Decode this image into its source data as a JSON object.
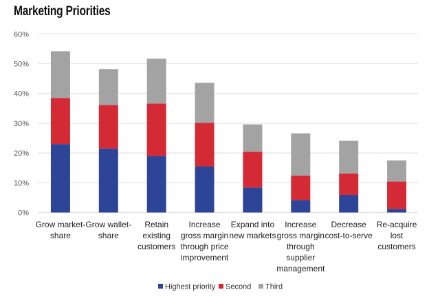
{
  "chart_data": {
    "type": "bar",
    "stacked": true,
    "title": "Marketing Priorities",
    "xlabel": "",
    "ylabel": "",
    "ylim": [
      0,
      60
    ],
    "yticks": [
      "0%",
      "10%",
      "20%",
      "30%",
      "40%",
      "50%",
      "60%"
    ],
    "grid": true,
    "legend_position": "bottom",
    "categories": [
      [
        "Grow market-",
        "share"
      ],
      [
        "Grow wallet-",
        "share"
      ],
      [
        "Retain",
        "existing",
        "customers"
      ],
      [
        "Increase",
        "gross margin",
        "through price",
        "improvement"
      ],
      [
        "Expand into",
        "new markets"
      ],
      [
        "Increase",
        "gross margin",
        "through",
        "supplier",
        "management"
      ],
      [
        "Decrease",
        "cost-to-serve"
      ],
      [
        "Re-acquire",
        "lost",
        "customers"
      ]
    ],
    "series": [
      {
        "name": "Highest priority",
        "color": "#2e4496",
        "values": [
          23.0,
          21.5,
          19.0,
          15.5,
          8.4,
          4.2,
          5.9,
          1.2
        ]
      },
      {
        "name": "Second",
        "color": "#d42a35",
        "values": [
          15.5,
          14.6,
          17.6,
          14.6,
          12.0,
          8.2,
          7.2,
          9.2
        ]
      },
      {
        "name": "Third",
        "color": "#a3a3a3",
        "values": [
          15.7,
          12.1,
          15.1,
          13.5,
          9.2,
          14.2,
          11.0,
          7.1
        ]
      }
    ]
  }
}
